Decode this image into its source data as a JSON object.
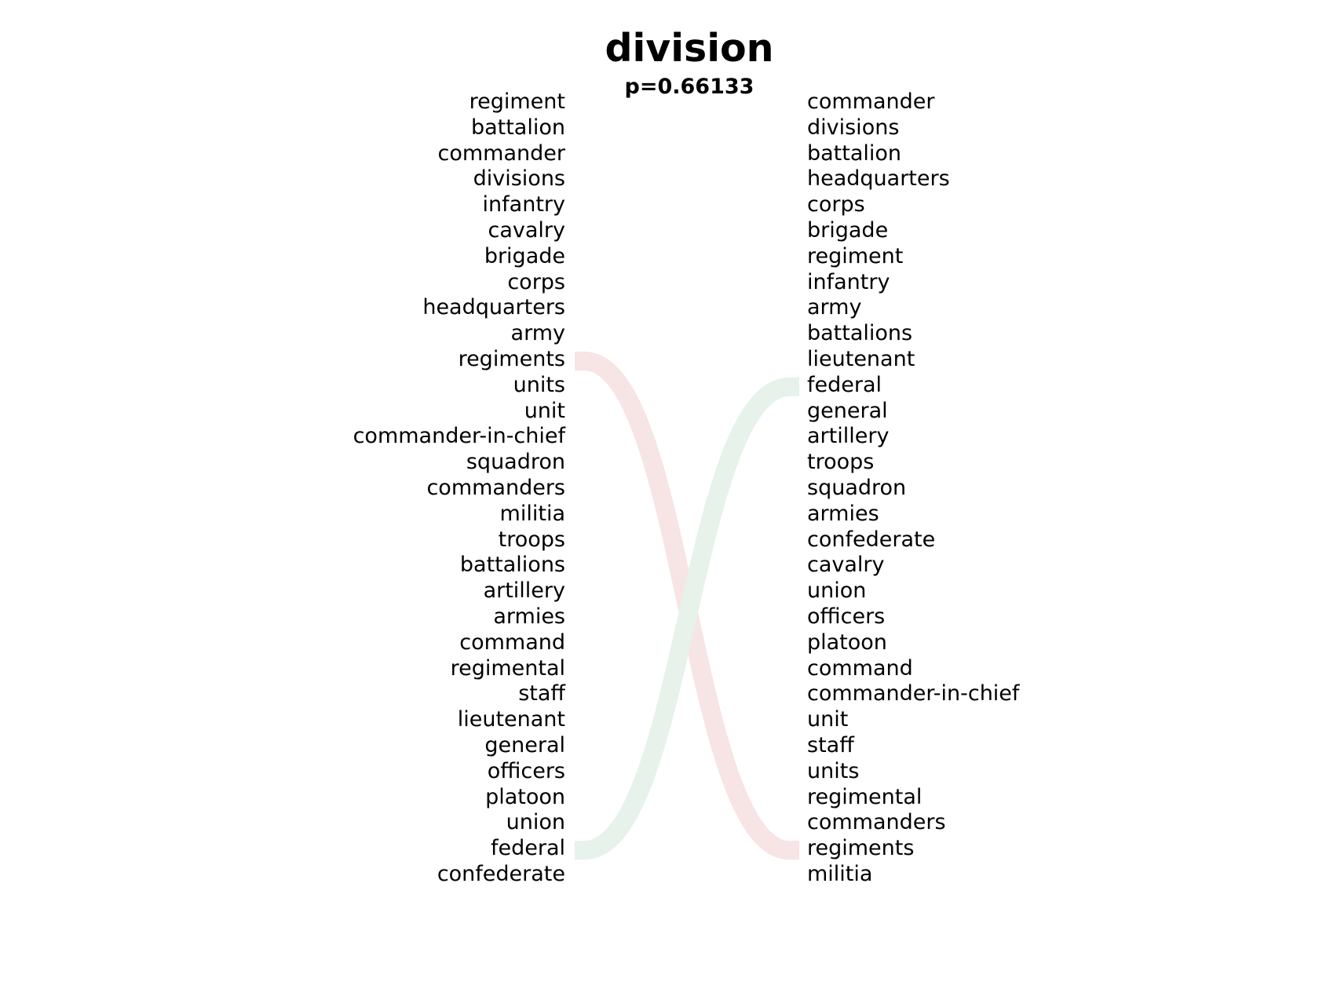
{
  "header": {
    "title": "division",
    "subtitle": "p=0.66133"
  },
  "left_column": [
    "regiment",
    "battalion",
    "commander",
    "divisions",
    "infantry",
    "cavalry",
    "brigade",
    "corps",
    "headquarters",
    "army",
    "regiments",
    "units",
    "unit",
    "commander-in-chief",
    "squadron",
    "commanders",
    "militia",
    "troops",
    "battalions",
    "artillery",
    "armies",
    "command",
    "regimental",
    "staff",
    "lieutenant",
    "general",
    "officers",
    "platoon",
    "union",
    "federal",
    "confederate"
  ],
  "right_column": [
    "commander",
    "divisions",
    "battalion",
    "headquarters",
    "corps",
    "brigade",
    "regiment",
    "infantry",
    "army",
    "battalions",
    "lieutenant",
    "federal",
    "general",
    "artillery",
    "troops",
    "squadron",
    "armies",
    "confederate",
    "cavalry",
    "union",
    "officers",
    "platoon",
    "command",
    "commander-in-chief",
    "unit",
    "staff",
    "units",
    "regimental",
    "commanders",
    "regiments",
    "militia"
  ],
  "links": [
    {
      "from": "regiments",
      "to": "regiments",
      "color": "#f7e4e4"
    },
    {
      "from": "federal",
      "to": "federal",
      "color": "#e6f2ea"
    }
  ]
}
